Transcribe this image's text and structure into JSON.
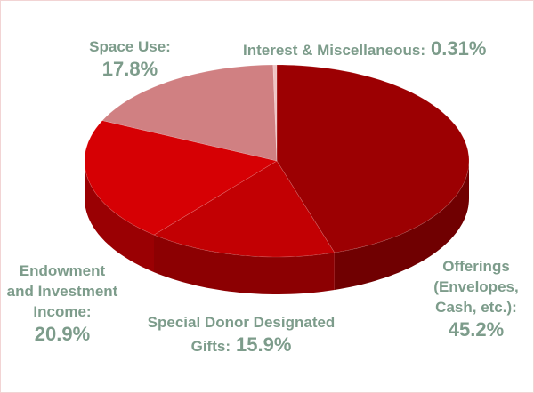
{
  "chart_data": {
    "type": "pie",
    "categories": [
      "Offerings (Envelopes, Cash, etc.):",
      "Special Donor Designated Gifts:",
      "Endowment and Investment Income:",
      "Space Use:",
      "Interest & Miscellaneous:"
    ],
    "values": [
      45.2,
      15.9,
      20.9,
      17.8,
      0.31
    ],
    "value_labels": [
      "45.2%",
      "15.9%",
      "20.9%",
      "17.8%",
      "0.31%"
    ],
    "colors": [
      "#9c0002",
      "#c20003",
      "#d60004",
      "#d08082",
      "#efc4c4"
    ],
    "start_angle": 0,
    "direction": "clockwise",
    "style": "3d"
  }
}
